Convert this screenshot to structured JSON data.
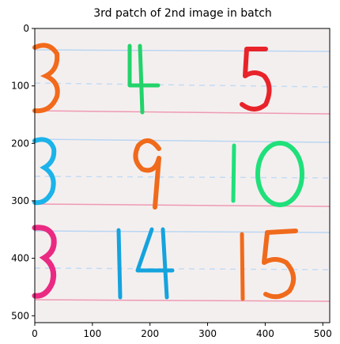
{
  "title": "3rd patch of 2nd image in batch",
  "axes": {
    "x_ticks": [
      "0",
      "100",
      "200",
      "300",
      "400",
      "500"
    ],
    "y_ticks": [
      "0",
      "100",
      "200",
      "300",
      "400",
      "500"
    ],
    "x_range": [
      0,
      512
    ],
    "y_range": [
      0,
      512
    ]
  },
  "image_content": {
    "paper_color": "#f3eeee",
    "rows": [
      {
        "numbers": [
          "3",
          "4",
          "5"
        ],
        "colors": [
          "#f26a1b",
          "#22d36a",
          "#e8232a"
        ]
      },
      {
        "numbers": [
          "3",
          "9",
          "10"
        ],
        "colors": [
          "#1bb3ea",
          "#f06a1c",
          "#1fe07a"
        ]
      },
      {
        "numbers": [
          "3",
          "14",
          "15"
        ],
        "colors": [
          "#ea2a82",
          "#15a3de",
          "#f06a1c"
        ]
      }
    ]
  }
}
